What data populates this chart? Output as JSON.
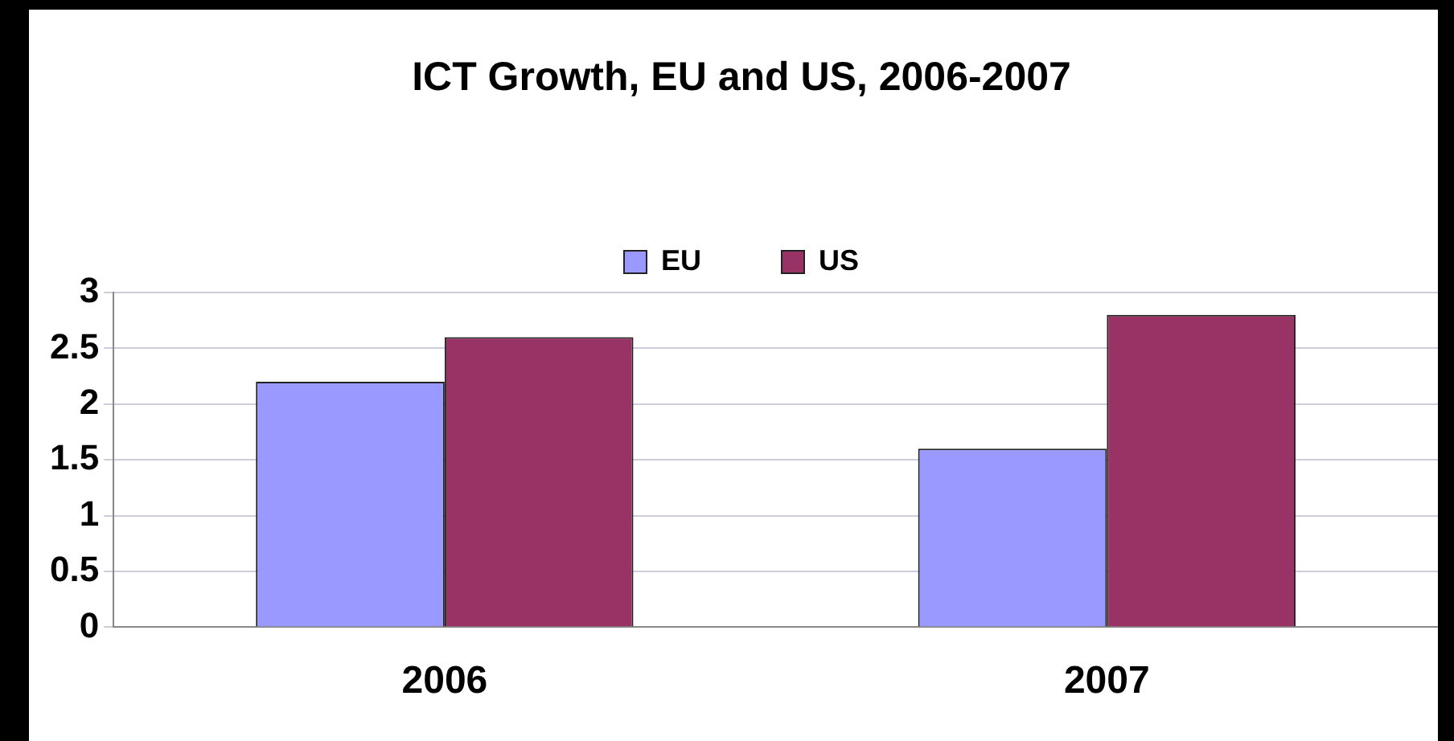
{
  "chart_data": {
    "type": "bar",
    "title": "ICT Growth, EU and US, 2006-2007",
    "categories": [
      "2006",
      "2007"
    ],
    "series": [
      {
        "name": "EU",
        "color": "#9999ff",
        "values": [
          2.2,
          1.6
        ]
      },
      {
        "name": "US",
        "color": "#993366",
        "values": [
          2.6,
          2.8
        ]
      }
    ],
    "ylim": [
      0,
      3
    ],
    "yticks": [
      0,
      0.5,
      1,
      1.5,
      2,
      2.5,
      3
    ],
    "grid": "y",
    "legend": "top"
  }
}
